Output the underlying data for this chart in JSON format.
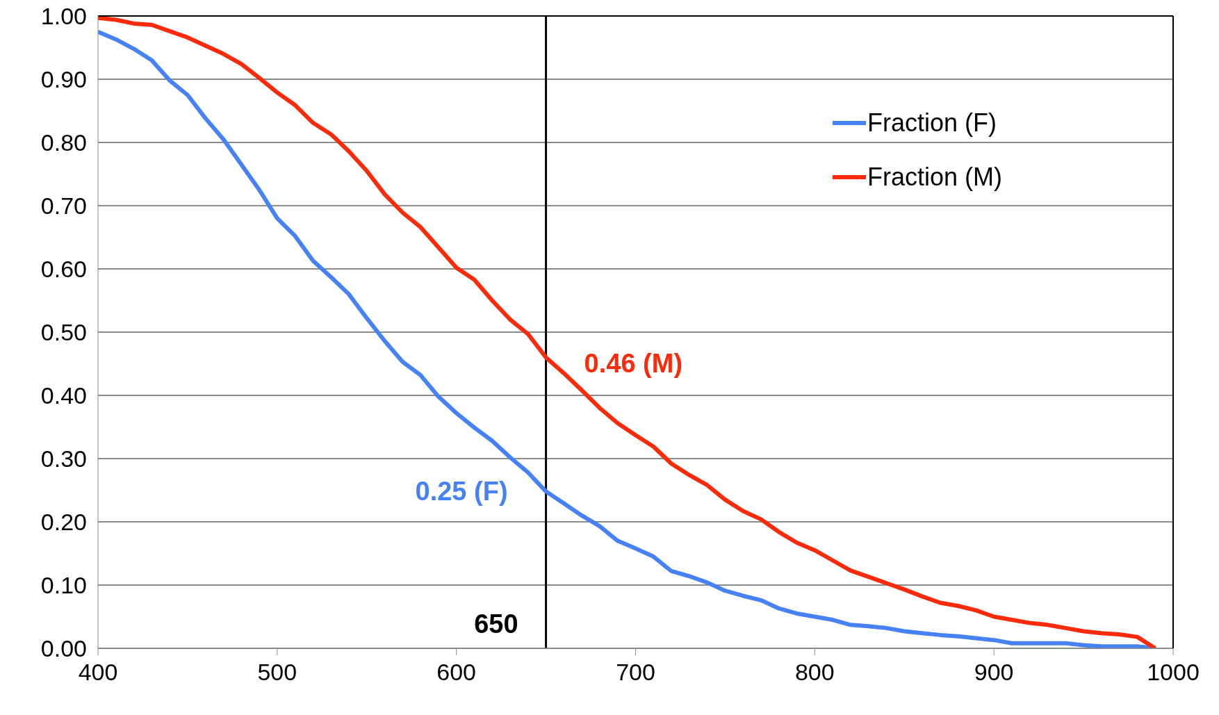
{
  "chart_data": {
    "type": "line",
    "x": [
      400,
      410,
      420,
      430,
      440,
      450,
      460,
      470,
      480,
      490,
      500,
      510,
      520,
      530,
      540,
      550,
      560,
      570,
      580,
      590,
      600,
      610,
      620,
      630,
      640,
      650,
      660,
      670,
      680,
      690,
      700,
      710,
      720,
      730,
      740,
      750,
      760,
      770,
      780,
      790,
      800,
      810,
      820,
      830,
      840,
      850,
      860,
      870,
      880,
      890,
      900,
      910,
      920,
      930,
      940,
      950,
      960,
      970,
      980,
      990
    ],
    "series": [
      {
        "name": "Fraction (F)",
        "color": "#4682f5",
        "values": [
          0.975,
          0.963,
          0.948,
          0.93,
          0.898,
          0.875,
          0.838,
          0.805,
          0.765,
          0.725,
          0.68,
          0.652,
          0.613,
          0.587,
          0.56,
          0.522,
          0.486,
          0.453,
          0.432,
          0.398,
          0.372,
          0.349,
          0.328,
          0.302,
          0.278,
          0.248,
          0.229,
          0.21,
          0.193,
          0.17,
          0.158,
          0.145,
          0.122,
          0.114,
          0.104,
          0.091,
          0.083,
          0.076,
          0.063,
          0.055,
          0.05,
          0.045,
          0.037,
          0.035,
          0.032,
          0.027,
          0.024,
          0.021,
          0.019,
          0.016,
          0.013,
          0.008,
          0.008,
          0.008,
          0.008,
          0.005,
          0.003,
          0.003,
          0.003,
          0
        ]
      },
      {
        "name": "Fraction (M)",
        "color": "#fa2a0a",
        "values": [
          0.997,
          0.994,
          0.988,
          0.986,
          0.976,
          0.966,
          0.953,
          0.94,
          0.924,
          0.902,
          0.879,
          0.859,
          0.831,
          0.813,
          0.786,
          0.755,
          0.718,
          0.689,
          0.666,
          0.634,
          0.602,
          0.583,
          0.55,
          0.52,
          0.497,
          0.46,
          0.435,
          0.408,
          0.38,
          0.356,
          0.337,
          0.319,
          0.292,
          0.274,
          0.258,
          0.235,
          0.217,
          0.204,
          0.184,
          0.167,
          0.155,
          0.139,
          0.123,
          0.113,
          0.103,
          0.093,
          0.082,
          0.072,
          0.067,
          0.06,
          0.05,
          0.045,
          0.04,
          0.037,
          0.032,
          0.027,
          0.024,
          0.022,
          0.018,
          0
        ]
      }
    ],
    "xlim": [
      400,
      1000
    ],
    "xticks": [
      400,
      500,
      600,
      700,
      800,
      900,
      1000
    ],
    "ylim": [
      0,
      1
    ],
    "yticks": [
      {
        "value": 0,
        "label": "0.00"
      },
      {
        "value": 0.1,
        "label": "0.10"
      },
      {
        "value": 0.2,
        "label": "0.20"
      },
      {
        "value": 0.3,
        "label": "0.30"
      },
      {
        "value": 0.4,
        "label": "0.40"
      },
      {
        "value": 0.5,
        "label": "0.50"
      },
      {
        "value": 0.6,
        "label": "0.60"
      },
      {
        "value": 0.7,
        "label": "0.70"
      },
      {
        "value": 0.8,
        "label": "0.80"
      },
      {
        "value": 0.9,
        "label": "0.90"
      },
      {
        "value": 1,
        "label": "1.00"
      }
    ],
    "grid": "y",
    "legend": "top right",
    "marker": "none",
    "line_style": "solid",
    "ref_lines": [
      {
        "axis": "x",
        "value": 650,
        "label": "650",
        "color": "#000000"
      }
    ],
    "annotations": [
      {
        "text": "0.46 (M)",
        "x": 650,
        "y": 0.46
      },
      {
        "text": "0.25 (F)",
        "x": 650,
        "y": 0.25
      }
    ]
  }
}
